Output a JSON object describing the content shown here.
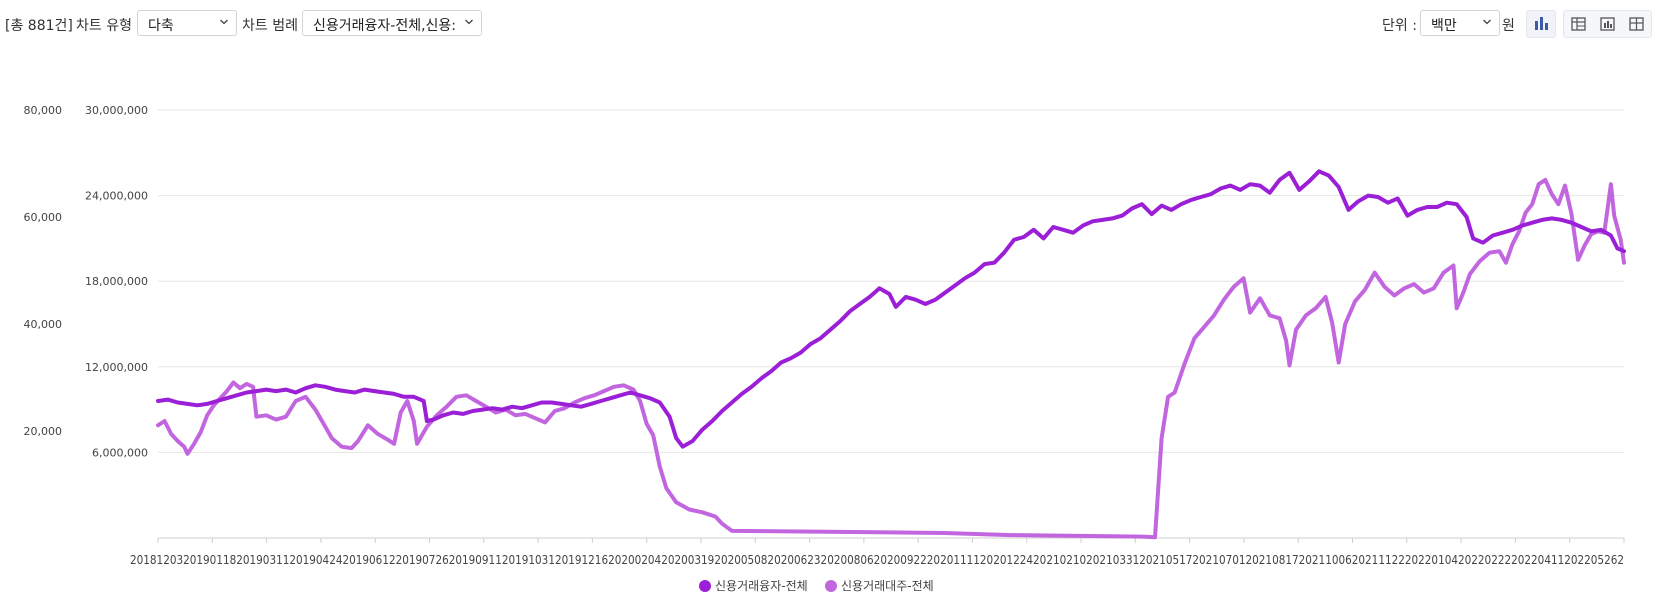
{
  "toolbar": {
    "count": "[총 881건]",
    "chart_type_label": "차트 유형",
    "chart_type_value": "다축",
    "legend_label": "차트 범례",
    "legend_value": "신용거래융자-전체,신용:",
    "unit_label": "단위 :",
    "unit_value": "백만",
    "currency": "원",
    "icons": [
      "bar-chart-icon",
      "grid-table-icon",
      "chart-table-icon",
      "table-icon"
    ]
  },
  "chart_data": {
    "type": "line",
    "title": "",
    "xlabel": "",
    "ylabel": "",
    "y_left_ticks": [
      "80,000",
      "60,000",
      "40,000",
      "20,000"
    ],
    "y_right_ticks": [
      "30,000,000",
      "24,000,000",
      "18,000,000",
      "12,000,000",
      "6,000,000"
    ],
    "x_tick_text": "201812032019011820190311201904242019061220190726201909112019103120191216202002042020031920200508202006232020080620200922202011112020122420210210202103312021051720210701202108172021100620211122202201042022022220220411202205262",
    "grid": true,
    "legend_position": "bottom",
    "series": [
      {
        "name": "신용거래융자-전체",
        "color": "#9b1fd6",
        "axis": "right",
        "points": [
          [
            0,
            9.6
          ],
          [
            3,
            9.7
          ],
          [
            6,
            9.5
          ],
          [
            9,
            9.4
          ],
          [
            12,
            9.3
          ],
          [
            15,
            9.4
          ],
          [
            18,
            9.6
          ],
          [
            21,
            9.8
          ],
          [
            24,
            10.0
          ],
          [
            27,
            10.2
          ],
          [
            30,
            10.3
          ],
          [
            33,
            10.4
          ],
          [
            36,
            10.3
          ],
          [
            39,
            10.4
          ],
          [
            42,
            10.2
          ],
          [
            45,
            10.5
          ],
          [
            48,
            10.7
          ],
          [
            51,
            10.6
          ],
          [
            54,
            10.4
          ],
          [
            57,
            10.3
          ],
          [
            60,
            10.2
          ],
          [
            63,
            10.4
          ],
          [
            66,
            10.3
          ],
          [
            69,
            10.2
          ],
          [
            72,
            10.1
          ],
          [
            75,
            9.9
          ],
          [
            78,
            9.9
          ],
          [
            81,
            9.6
          ],
          [
            82,
            8.2
          ],
          [
            84,
            8.3
          ],
          [
            87,
            8.6
          ],
          [
            90,
            8.8
          ],
          [
            93,
            8.7
          ],
          [
            96,
            8.9
          ],
          [
            99,
            9.0
          ],
          [
            102,
            9.1
          ],
          [
            105,
            9.0
          ],
          [
            108,
            9.2
          ],
          [
            111,
            9.1
          ],
          [
            114,
            9.3
          ],
          [
            117,
            9.5
          ],
          [
            120,
            9.5
          ],
          [
            123,
            9.4
          ],
          [
            126,
            9.3
          ],
          [
            129,
            9.2
          ],
          [
            132,
            9.4
          ],
          [
            135,
            9.6
          ],
          [
            138,
            9.8
          ],
          [
            141,
            10.0
          ],
          [
            144,
            10.2
          ],
          [
            147,
            10.0
          ],
          [
            150,
            9.8
          ],
          [
            153,
            9.5
          ],
          [
            156,
            8.5
          ],
          [
            158,
            7.0
          ],
          [
            160,
            6.4
          ],
          [
            163,
            6.8
          ],
          [
            166,
            7.6
          ],
          [
            169,
            8.2
          ],
          [
            172,
            8.9
          ],
          [
            175,
            9.5
          ],
          [
            178,
            10.1
          ],
          [
            181,
            10.6
          ],
          [
            184,
            11.2
          ],
          [
            187,
            11.7
          ],
          [
            190,
            12.3
          ],
          [
            193,
            12.6
          ],
          [
            196,
            13.0
          ],
          [
            199,
            13.6
          ],
          [
            202,
            14.0
          ],
          [
            205,
            14.6
          ],
          [
            208,
            15.2
          ],
          [
            211,
            15.9
          ],
          [
            214,
            16.4
          ],
          [
            217,
            16.9
          ],
          [
            220,
            17.5
          ],
          [
            223,
            17.1
          ],
          [
            225,
            16.2
          ],
          [
            228,
            16.9
          ],
          [
            231,
            16.7
          ],
          [
            234,
            16.4
          ],
          [
            237,
            16.7
          ],
          [
            240,
            17.2
          ],
          [
            243,
            17.7
          ],
          [
            246,
            18.2
          ],
          [
            249,
            18.6
          ],
          [
            252,
            19.2
          ],
          [
            255,
            19.3
          ],
          [
            258,
            20.0
          ],
          [
            261,
            20.9
          ],
          [
            264,
            21.1
          ],
          [
            267,
            21.6
          ],
          [
            270,
            21.0
          ],
          [
            273,
            21.8
          ],
          [
            276,
            21.6
          ],
          [
            279,
            21.4
          ],
          [
            282,
            21.9
          ],
          [
            285,
            22.2
          ],
          [
            288,
            22.3
          ],
          [
            291,
            22.4
          ],
          [
            294,
            22.6
          ],
          [
            297,
            23.1
          ],
          [
            300,
            23.4
          ],
          [
            303,
            22.7
          ],
          [
            306,
            23.3
          ],
          [
            309,
            23.0
          ],
          [
            312,
            23.4
          ],
          [
            315,
            23.7
          ],
          [
            318,
            23.9
          ],
          [
            321,
            24.1
          ],
          [
            324,
            24.5
          ],
          [
            327,
            24.7
          ],
          [
            330,
            24.4
          ],
          [
            333,
            24.8
          ],
          [
            336,
            24.7
          ],
          [
            339,
            24.2
          ],
          [
            342,
            25.1
          ],
          [
            345,
            25.6
          ],
          [
            348,
            24.4
          ],
          [
            351,
            25.0
          ],
          [
            354,
            25.7
          ],
          [
            357,
            25.4
          ],
          [
            360,
            24.6
          ],
          [
            363,
            23.0
          ],
          [
            366,
            23.6
          ],
          [
            369,
            24.0
          ],
          [
            372,
            23.9
          ],
          [
            375,
            23.5
          ],
          [
            378,
            23.8
          ],
          [
            381,
            22.6
          ],
          [
            384,
            23.0
          ],
          [
            387,
            23.2
          ],
          [
            390,
            23.2
          ],
          [
            393,
            23.5
          ],
          [
            396,
            23.4
          ],
          [
            399,
            22.5
          ],
          [
            401,
            21.0
          ],
          [
            404,
            20.7
          ],
          [
            407,
            21.2
          ],
          [
            410,
            21.4
          ],
          [
            413,
            21.6
          ],
          [
            416,
            21.9
          ],
          [
            419,
            22.1
          ],
          [
            422,
            22.3
          ],
          [
            425,
            22.4
          ],
          [
            428,
            22.3
          ],
          [
            431,
            22.1
          ],
          [
            434,
            21.8
          ],
          [
            437,
            21.5
          ],
          [
            440,
            21.6
          ],
          [
            443,
            21.2
          ],
          [
            445,
            20.3
          ],
          [
            447,
            20.1
          ]
        ]
      },
      {
        "name": "신용거래대주-전체",
        "color": "#c266e0",
        "axis": "right",
        "points": [
          [
            0,
            7.9
          ],
          [
            2,
            8.2
          ],
          [
            4,
            7.3
          ],
          [
            6,
            6.8
          ],
          [
            8,
            6.4
          ],
          [
            9,
            5.9
          ],
          [
            11,
            6.6
          ],
          [
            13,
            7.4
          ],
          [
            15,
            8.6
          ],
          [
            17,
            9.3
          ],
          [
            19,
            9.8
          ],
          [
            21,
            10.3
          ],
          [
            23,
            10.9
          ],
          [
            25,
            10.5
          ],
          [
            27,
            10.8
          ],
          [
            29,
            10.6
          ],
          [
            30,
            8.5
          ],
          [
            33,
            8.6
          ],
          [
            36,
            8.3
          ],
          [
            39,
            8.5
          ],
          [
            42,
            9.6
          ],
          [
            45,
            9.9
          ],
          [
            48,
            9.0
          ],
          [
            50,
            8.2
          ],
          [
            53,
            7.0
          ],
          [
            56,
            6.4
          ],
          [
            59,
            6.3
          ],
          [
            61,
            6.8
          ],
          [
            64,
            7.9
          ],
          [
            67,
            7.3
          ],
          [
            70,
            6.9
          ],
          [
            72,
            6.6
          ],
          [
            74,
            8.8
          ],
          [
            76,
            9.6
          ],
          [
            78,
            8.2
          ],
          [
            79,
            6.6
          ],
          [
            82,
            7.8
          ],
          [
            85,
            8.6
          ],
          [
            88,
            9.2
          ],
          [
            91,
            9.9
          ],
          [
            94,
            10.0
          ],
          [
            97,
            9.6
          ],
          [
            100,
            9.2
          ],
          [
            103,
            8.8
          ],
          [
            106,
            9.0
          ],
          [
            109,
            8.6
          ],
          [
            112,
            8.7
          ],
          [
            115,
            8.4
          ],
          [
            118,
            8.1
          ],
          [
            121,
            8.9
          ],
          [
            124,
            9.1
          ],
          [
            127,
            9.5
          ],
          [
            130,
            9.8
          ],
          [
            133,
            10.0
          ],
          [
            136,
            10.3
          ],
          [
            139,
            10.6
          ],
          [
            142,
            10.7
          ],
          [
            145,
            10.4
          ],
          [
            147,
            9.6
          ],
          [
            149,
            8.0
          ],
          [
            151,
            7.2
          ],
          [
            153,
            5.0
          ],
          [
            155,
            3.5
          ],
          [
            158,
            2.5
          ],
          [
            162,
            2.0
          ],
          [
            166,
            1.8
          ],
          [
            170,
            1.5
          ],
          [
            172,
            1.0
          ],
          [
            175,
            0.5
          ],
          [
            200,
            0.45
          ],
          [
            240,
            0.35
          ],
          [
            260,
            0.2
          ],
          [
            300,
            0.1
          ],
          [
            304,
            0.05
          ],
          [
            306,
            7.0
          ],
          [
            308,
            9.9
          ],
          [
            310,
            10.2
          ],
          [
            313,
            12.2
          ],
          [
            316,
            14.0
          ],
          [
            319,
            14.8
          ],
          [
            322,
            15.6
          ],
          [
            325,
            16.7
          ],
          [
            328,
            17.6
          ],
          [
            331,
            18.2
          ],
          [
            333,
            15.8
          ],
          [
            336,
            16.8
          ],
          [
            339,
            15.6
          ],
          [
            342,
            15.4
          ],
          [
            344,
            13.8
          ],
          [
            345,
            12.1
          ],
          [
            347,
            14.6
          ],
          [
            350,
            15.6
          ],
          [
            353,
            16.1
          ],
          [
            356,
            16.9
          ],
          [
            358,
            15.1
          ],
          [
            360,
            12.3
          ],
          [
            362,
            15.0
          ],
          [
            365,
            16.6
          ],
          [
            368,
            17.4
          ],
          [
            371,
            18.6
          ],
          [
            374,
            17.6
          ],
          [
            377,
            17.0
          ],
          [
            380,
            17.5
          ],
          [
            383,
            17.8
          ],
          [
            386,
            17.2
          ],
          [
            389,
            17.5
          ],
          [
            392,
            18.6
          ],
          [
            395,
            19.1
          ],
          [
            396,
            16.1
          ],
          [
            398,
            17.2
          ],
          [
            400,
            18.5
          ],
          [
            403,
            19.4
          ],
          [
            406,
            20.0
          ],
          [
            409,
            20.1
          ],
          [
            411,
            19.3
          ],
          [
            413,
            20.6
          ],
          [
            415,
            21.5
          ],
          [
            417,
            22.8
          ],
          [
            419,
            23.4
          ],
          [
            421,
            24.8
          ],
          [
            423,
            25.1
          ],
          [
            425,
            24.1
          ],
          [
            427,
            23.4
          ],
          [
            429,
            24.7
          ],
          [
            431,
            22.7
          ],
          [
            433,
            19.5
          ],
          [
            435,
            20.5
          ],
          [
            437,
            21.3
          ],
          [
            439,
            21.5
          ],
          [
            441,
            21.4
          ],
          [
            443,
            24.8
          ],
          [
            444,
            22.6
          ],
          [
            446,
            20.9
          ],
          [
            447,
            19.3
          ]
        ]
      }
    ],
    "y_right_range": [
      0,
      30000000
    ],
    "y_right_scale": "millions (point values in units of 1,000,000)"
  }
}
